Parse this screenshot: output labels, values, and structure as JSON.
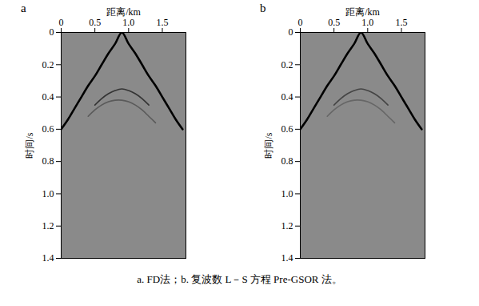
{
  "chart_data": [
    {
      "type": "line",
      "title": "a",
      "xlabel": "距离/km",
      "ylabel": "时间/s",
      "x": [
        0,
        0.1,
        0.2,
        0.3,
        0.4,
        0.5,
        0.6,
        0.7,
        0.8,
        0.9,
        1.0,
        1.1,
        1.2,
        1.3,
        1.4,
        1.5,
        1.6,
        1.7,
        1.8
      ],
      "series": [
        {
          "color": "#000000",
          "values": [
            0.6,
            0.54,
            0.47,
            0.4,
            0.33,
            0.27,
            0.2,
            0.13,
            0.07,
            0.0,
            0.07,
            0.13,
            0.2,
            0.27,
            0.33,
            0.4,
            0.47,
            0.54,
            0.6
          ]
        },
        {
          "color": "#333333",
          "values": [
            null,
            null,
            null,
            null,
            null,
            0.45,
            0.41,
            0.38,
            0.36,
            0.35,
            0.36,
            0.38,
            0.41,
            0.45,
            null,
            null,
            null,
            null,
            null
          ]
        },
        {
          "color": "#5a5a5a",
          "values": [
            null,
            null,
            null,
            null,
            0.52,
            0.48,
            0.45,
            0.43,
            0.42,
            0.42,
            0.43,
            0.45,
            0.48,
            0.52,
            0.56,
            null,
            null,
            null,
            null
          ]
        }
      ],
      "xlim": [
        0,
        1.85
      ],
      "xticks": [
        0,
        0.5,
        {
          "value": 1,
          "label": "1.0"
        },
        1.5
      ],
      "ylim": [
        0,
        1.4
      ],
      "yticks": [
        0,
        0.2,
        0.4,
        0.6,
        0.8,
        {
          "value": 1,
          "label": "1.0"
        },
        1.2,
        1.4
      ],
      "grid": false
    },
    {
      "type": "line",
      "title": "b",
      "xlabel": "距离/km",
      "ylabel": "时间/s",
      "x": [
        0,
        0.1,
        0.2,
        0.3,
        0.4,
        0.5,
        0.6,
        0.7,
        0.8,
        0.9,
        1.0,
        1.1,
        1.2,
        1.3,
        1.4,
        1.5,
        1.6,
        1.7,
        1.8
      ],
      "series": [
        {
          "color": "#000000",
          "values": [
            0.6,
            0.54,
            0.47,
            0.4,
            0.33,
            0.27,
            0.2,
            0.13,
            0.07,
            0.0,
            0.07,
            0.13,
            0.2,
            0.27,
            0.33,
            0.4,
            0.47,
            0.54,
            0.6
          ]
        },
        {
          "color": "#444444",
          "values": [
            null,
            null,
            null,
            null,
            null,
            0.45,
            0.41,
            0.38,
            0.36,
            0.35,
            0.36,
            0.38,
            0.41,
            0.45,
            null,
            null,
            null,
            null,
            null
          ]
        },
        {
          "color": "#666666",
          "values": [
            null,
            null,
            null,
            null,
            0.52,
            0.48,
            0.45,
            0.43,
            0.42,
            0.42,
            0.43,
            0.45,
            0.48,
            0.52,
            0.56,
            null,
            null,
            null,
            null
          ]
        }
      ],
      "xlim": [
        0,
        1.85
      ],
      "xticks": [
        0,
        0.5,
        {
          "value": 1,
          "label": "1.0"
        },
        1.5
      ],
      "ylim": [
        0,
        1.4
      ],
      "yticks": [
        0,
        0.2,
        0.4,
        0.6,
        0.8,
        {
          "value": 1,
          "label": "1.0"
        },
        1.2,
        1.4
      ],
      "grid": false
    }
  ],
  "caption": "a. FD法；b. 复波数 L－S 方程 Pre-GSOR 法。"
}
